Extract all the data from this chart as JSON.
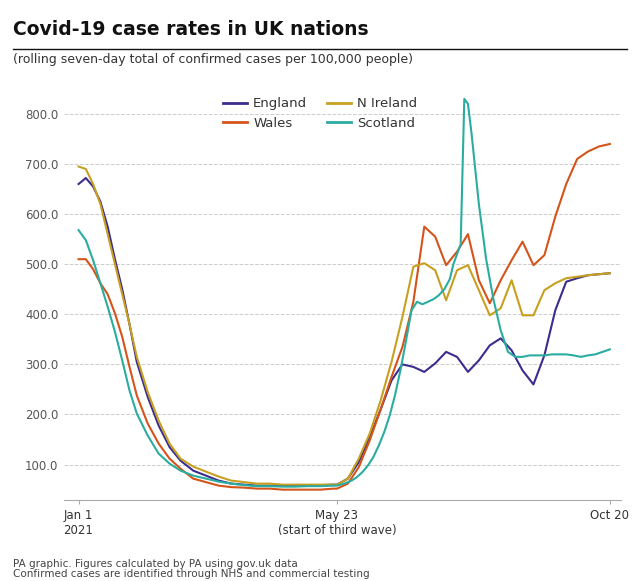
{
  "title": "Covid-19 case rates in UK nations",
  "subtitle": "(rolling seven-day total of confirmed cases per 100,000 people)",
  "footer1": "PA graphic. Figures calculated by PA using gov.uk data",
  "footer2": "Confirmed cases are identified through NHS and commercial testing",
  "xtick_labels": [
    "Jan 1\n2021",
    "May 23\n(start of third wave)",
    "Oct 20"
  ],
  "xtick_positions": [
    0,
    142,
    292
  ],
  "ytick_labels": [
    "100.0",
    "200.0",
    "300.0",
    "400.0",
    "500.0",
    "600.0",
    "700.0",
    "800.0"
  ],
  "ytick_values": [
    100,
    200,
    300,
    400,
    500,
    600,
    700,
    800
  ],
  "ylim": [
    30,
    865
  ],
  "xlim": [
    -8,
    298
  ],
  "colors": {
    "England": "#3b2d8e",
    "Wales": "#d4541a",
    "N Ireland": "#c8a020",
    "Scotland": "#2aada0"
  },
  "background_color": "#ffffff",
  "england_x": [
    0,
    4,
    8,
    12,
    16,
    20,
    24,
    28,
    32,
    38,
    44,
    50,
    56,
    63,
    70,
    77,
    84,
    91,
    98,
    105,
    112,
    119,
    126,
    133,
    140,
    142,
    148,
    154,
    160,
    166,
    172,
    178,
    184,
    190,
    196,
    202,
    208,
    214,
    220,
    226,
    232,
    238,
    244,
    250,
    256,
    262,
    268,
    274,
    280,
    286,
    292
  ],
  "england_y": [
    660,
    672,
    655,
    625,
    575,
    510,
    450,
    380,
    305,
    235,
    178,
    135,
    108,
    88,
    78,
    68,
    62,
    60,
    58,
    58,
    58,
    58,
    58,
    59,
    60,
    60,
    72,
    105,
    155,
    210,
    268,
    300,
    295,
    285,
    302,
    325,
    315,
    285,
    308,
    338,
    352,
    328,
    288,
    260,
    318,
    408,
    465,
    472,
    478,
    480,
    482
  ],
  "wales_x": [
    0,
    4,
    8,
    12,
    16,
    20,
    24,
    28,
    32,
    38,
    44,
    50,
    56,
    63,
    70,
    77,
    84,
    91,
    98,
    105,
    112,
    119,
    126,
    133,
    140,
    142,
    148,
    154,
    160,
    166,
    172,
    178,
    184,
    190,
    196,
    202,
    208,
    214,
    220,
    226,
    232,
    238,
    244,
    250,
    256,
    262,
    268,
    274,
    280,
    286,
    292
  ],
  "wales_y": [
    510,
    510,
    490,
    462,
    440,
    402,
    355,
    295,
    238,
    182,
    142,
    112,
    92,
    72,
    65,
    58,
    55,
    54,
    52,
    52,
    50,
    50,
    50,
    50,
    52,
    52,
    62,
    95,
    148,
    210,
    275,
    335,
    425,
    575,
    555,
    498,
    525,
    560,
    468,
    422,
    468,
    508,
    545,
    498,
    518,
    595,
    660,
    710,
    725,
    735,
    740
  ],
  "nireland_x": [
    0,
    4,
    8,
    12,
    16,
    20,
    24,
    28,
    32,
    38,
    44,
    50,
    56,
    63,
    70,
    77,
    84,
    91,
    98,
    105,
    112,
    119,
    126,
    133,
    140,
    142,
    148,
    154,
    160,
    166,
    172,
    178,
    184,
    190,
    196,
    202,
    208,
    214,
    220,
    226,
    232,
    238,
    244,
    250,
    256,
    262,
    268,
    274,
    280,
    286,
    292
  ],
  "nireland_y": [
    695,
    690,
    660,
    620,
    560,
    500,
    440,
    380,
    315,
    245,
    188,
    142,
    112,
    96,
    86,
    76,
    68,
    65,
    62,
    62,
    60,
    60,
    60,
    60,
    60,
    60,
    72,
    112,
    162,
    228,
    305,
    395,
    495,
    502,
    488,
    428,
    488,
    498,
    448,
    398,
    412,
    468,
    398,
    398,
    448,
    462,
    472,
    475,
    478,
    480,
    482
  ],
  "scotland_x": [
    0,
    4,
    8,
    12,
    16,
    20,
    24,
    28,
    32,
    38,
    44,
    50,
    56,
    63,
    70,
    77,
    84,
    91,
    98,
    105,
    112,
    119,
    126,
    133,
    140,
    142,
    146,
    150,
    153,
    156,
    159,
    162,
    165,
    168,
    171,
    174,
    177,
    180,
    183,
    186,
    189,
    192,
    195,
    198,
    201,
    204,
    206,
    208,
    210,
    212,
    214,
    216,
    218,
    220,
    224,
    228,
    232,
    236,
    240,
    244,
    248,
    252,
    256,
    260,
    264,
    268,
    272,
    276,
    280,
    284,
    288,
    292
  ],
  "scotland_y": [
    568,
    548,
    508,
    462,
    415,
    365,
    308,
    248,
    202,
    158,
    122,
    102,
    88,
    78,
    72,
    66,
    62,
    59,
    57,
    57,
    56,
    56,
    57,
    57,
    58,
    58,
    62,
    68,
    75,
    85,
    98,
    115,
    138,
    165,
    198,
    240,
    290,
    348,
    408,
    425,
    420,
    425,
    430,
    438,
    450,
    470,
    500,
    520,
    540,
    830,
    820,
    760,
    690,
    620,
    510,
    430,
    368,
    325,
    315,
    315,
    318,
    318,
    318,
    320,
    320,
    320,
    318,
    315,
    318,
    320,
    325,
    330
  ]
}
